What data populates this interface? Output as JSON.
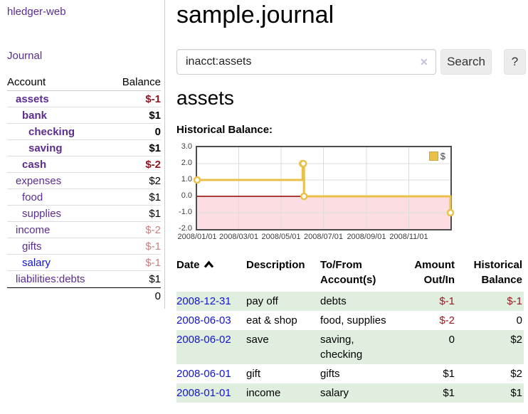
{
  "sidebar": {
    "app_title": "hledger-web",
    "journal_link": "Journal",
    "table": {
      "account_header": "Account",
      "balance_header": "Balance",
      "accounts": [
        {
          "name": "assets",
          "level": 1,
          "bold": true,
          "balance": "$-1",
          "link_style": "purple"
        },
        {
          "name": "bank",
          "level": 2,
          "bold": true,
          "balance": "$1",
          "link_style": "purple"
        },
        {
          "name": "checking",
          "level": 3,
          "bold": true,
          "balance": "0",
          "link_style": "purple"
        },
        {
          "name": "saving",
          "level": 3,
          "bold": true,
          "balance": "$1",
          "link_style": "purple"
        },
        {
          "name": "cash",
          "level": 2,
          "bold": true,
          "balance": "$-2",
          "link_style": "purple"
        },
        {
          "name": "expenses",
          "level": 1,
          "bold": false,
          "balance": "$2",
          "link_style": "purple"
        },
        {
          "name": "food",
          "level": 2,
          "bold": false,
          "balance": "$1",
          "link_style": "purple"
        },
        {
          "name": "supplies",
          "level": 2,
          "bold": false,
          "balance": "$1",
          "link_style": "purple"
        },
        {
          "name": "income",
          "level": 1,
          "bold": false,
          "balance": "$-2",
          "link_style": "purple"
        },
        {
          "name": "gifts",
          "level": 2,
          "bold": false,
          "balance": "$-1",
          "link_style": "purple"
        },
        {
          "name": "salary",
          "level": 2,
          "bold": false,
          "balance": "$-1",
          "link_style": "blue"
        },
        {
          "name": "liabilities:debts",
          "level": 1,
          "bold": false,
          "balance": "$1",
          "link_style": "purple"
        }
      ],
      "total": "0"
    }
  },
  "main": {
    "title": "sample.journal",
    "search": {
      "value": "inacct:assets",
      "clear_icon": "✕",
      "button": "Search",
      "help_button": "?"
    },
    "account_heading": "assets",
    "chart_label": "Historical Balance:"
  },
  "chart_data": {
    "type": "line",
    "title": "Historical Balance",
    "step": true,
    "series": [
      {
        "name": "$",
        "color": "#e8c04a",
        "points": [
          {
            "date": "2008-01-01",
            "day": 0,
            "value": 1
          },
          {
            "date": "2008-06-01",
            "day": 152,
            "value": 2
          },
          {
            "date": "2008-06-02",
            "day": 153,
            "value": 2
          },
          {
            "date": "2008-06-03",
            "day": 154,
            "value": 0
          },
          {
            "date": "2008-12-31",
            "day": 365,
            "value": -1
          }
        ]
      }
    ],
    "x_ticks": [
      {
        "label": "2008/01/01",
        "day": 0
      },
      {
        "label": "2008/03/01",
        "day": 60
      },
      {
        "label": "2008/05/01",
        "day": 121
      },
      {
        "label": "2008/07/01",
        "day": 182
      },
      {
        "label": "2008/09/01",
        "day": 244
      },
      {
        "label": "2008/11/01",
        "day": 305
      }
    ],
    "x_range_days": [
      0,
      365
    ],
    "y_ticks": [
      3.0,
      2.0,
      1.0,
      0.0,
      -1.0,
      -2.0
    ],
    "ylim": [
      -2,
      3
    ],
    "legend": {
      "label": "$",
      "position": "top-right"
    },
    "grid": true,
    "negative_region_color": "#fcdee2",
    "zero_line_color": "#8b0000",
    "gridline_color": "#dcdcdc"
  },
  "register": {
    "headers": {
      "date": "Date",
      "description": "Description",
      "accounts": "To/From Account(s)",
      "amount": "Amount Out/In",
      "balance": "Historical Balance"
    },
    "rows": [
      {
        "date": "2008-12-31",
        "description": "pay off",
        "accounts": "debts",
        "amount": "$-1",
        "balance": "$-1"
      },
      {
        "date": "2008-06-03",
        "description": "eat & shop",
        "accounts": "food, supplies",
        "amount": "$-2",
        "balance": "0"
      },
      {
        "date": "2008-06-02",
        "description": "save",
        "accounts": "saving, checking",
        "amount": "0",
        "balance": "$2"
      },
      {
        "date": "2008-06-01",
        "description": "gift",
        "accounts": "gifts",
        "amount": "$1",
        "balance": "$2"
      },
      {
        "date": "2008-01-01",
        "description": "income",
        "accounts": "salary",
        "amount": "$1",
        "balance": "$1"
      }
    ]
  },
  "colors": {
    "accent_purple": "#5b2d90",
    "link_blue": "#1414cc",
    "negative_strong": "#8e1620",
    "negative_soft": "#c87f7f",
    "row_stripe_green": "#dfeedf",
    "chart_line_gold": "#e8c04a",
    "negative_region_pink": "#fcdee2",
    "zero_line_red": "#8b0000"
  }
}
